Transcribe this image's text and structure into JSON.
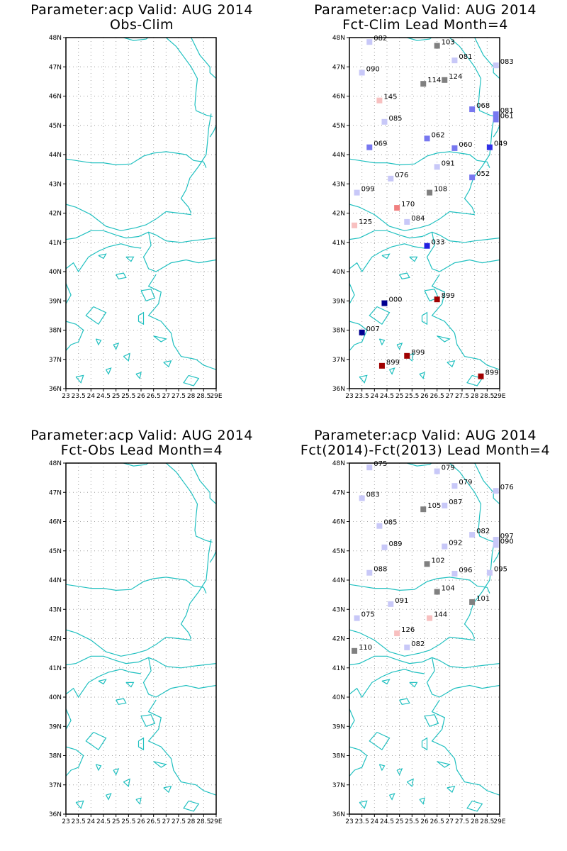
{
  "panels": [
    {
      "title_line1": "Parameter:acp Valid: AUG 2014",
      "title_line2": "Obs-Clim",
      "stations": []
    },
    {
      "title_line1": "Parameter:acp Valid: AUG 2014",
      "title_line2": "Fct-Clim Lead Month=4",
      "stations": [
        {
          "lon": 23.8,
          "lat": 47.85,
          "label": "082",
          "color": "#c8c8f8"
        },
        {
          "lon": 26.5,
          "lat": 47.72,
          "label": "103",
          "color": "#808080"
        },
        {
          "lon": 27.2,
          "lat": 47.22,
          "label": "081",
          "color": "#c8c8f8"
        },
        {
          "lon": 28.85,
          "lat": 47.05,
          "label": "083",
          "color": "#c8c8f8"
        },
        {
          "lon": 23.5,
          "lat": 46.8,
          "label": "090",
          "color": "#c8c8f8"
        },
        {
          "lon": 25.95,
          "lat": 46.42,
          "label": "114",
          "color": "#808080"
        },
        {
          "lon": 26.8,
          "lat": 46.55,
          "label": "124",
          "color": "#808080"
        },
        {
          "lon": 24.2,
          "lat": 45.85,
          "label": "145",
          "color": "#f8c0c0"
        },
        {
          "lon": 27.9,
          "lat": 45.55,
          "label": "068",
          "color": "#7878f0"
        },
        {
          "lon": 28.85,
          "lat": 45.38,
          "label": "081",
          "color": "#7878f0"
        },
        {
          "lon": 28.85,
          "lat": 45.2,
          "label": "061",
          "color": "#7878f0"
        },
        {
          "lon": 24.4,
          "lat": 45.12,
          "label": "085",
          "color": "#c8c8f8"
        },
        {
          "lon": 26.1,
          "lat": 44.55,
          "label": "062",
          "color": "#7878f0"
        },
        {
          "lon": 23.8,
          "lat": 44.25,
          "label": "069",
          "color": "#7878f0"
        },
        {
          "lon": 27.2,
          "lat": 44.22,
          "label": "060",
          "color": "#7878f0"
        },
        {
          "lon": 28.6,
          "lat": 44.25,
          "label": "049",
          "color": "#3030e8"
        },
        {
          "lon": 26.5,
          "lat": 43.58,
          "label": "091",
          "color": "#c8c8f8"
        },
        {
          "lon": 24.65,
          "lat": 43.18,
          "label": "076",
          "color": "#c8c8f8"
        },
        {
          "lon": 27.9,
          "lat": 43.22,
          "label": "052",
          "color": "#7878f0"
        },
        {
          "lon": 23.3,
          "lat": 42.7,
          "label": "099",
          "color": "#c8c8f8"
        },
        {
          "lon": 26.2,
          "lat": 42.7,
          "label": "108",
          "color": "#808080"
        },
        {
          "lon": 24.9,
          "lat": 42.18,
          "label": "170",
          "color": "#f08080"
        },
        {
          "lon": 25.3,
          "lat": 41.7,
          "label": "084",
          "color": "#c8c8f8"
        },
        {
          "lon": 23.2,
          "lat": 41.58,
          "label": "125",
          "color": "#f8c0c0"
        },
        {
          "lon": 26.1,
          "lat": 40.88,
          "label": "033",
          "color": "#2020e0"
        },
        {
          "lon": 24.4,
          "lat": 38.92,
          "label": "000",
          "color": "#000090"
        },
        {
          "lon": 26.5,
          "lat": 39.05,
          "label": "899",
          "color": "#a00000"
        },
        {
          "lon": 23.5,
          "lat": 37.92,
          "label": "007",
          "color": "#000090"
        },
        {
          "lon": 25.3,
          "lat": 37.12,
          "label": "899",
          "color": "#a00000"
        },
        {
          "lon": 24.3,
          "lat": 36.78,
          "label": "899",
          "color": "#a00000"
        },
        {
          "lon": 28.25,
          "lat": 36.42,
          "label": "899",
          "color": "#a00000"
        }
      ]
    },
    {
      "title_line1": "Parameter:acp Valid: AUG 2014",
      "title_line2": "Fct-Obs Lead Month=4",
      "stations": []
    },
    {
      "title_line1": "Parameter:acp Valid: AUG 2014",
      "title_line2": "Fct(2014)-Fct(2013) Lead Month=4",
      "stations": [
        {
          "lon": 23.8,
          "lat": 47.85,
          "label": "075",
          "color": "#c8c8f8"
        },
        {
          "lon": 26.5,
          "lat": 47.72,
          "label": "079",
          "color": "#c8c8f8"
        },
        {
          "lon": 27.2,
          "lat": 47.22,
          "label": "079",
          "color": "#c8c8f8"
        },
        {
          "lon": 28.85,
          "lat": 47.05,
          "label": "076",
          "color": "#c8c8f8"
        },
        {
          "lon": 23.5,
          "lat": 46.8,
          "label": "083",
          "color": "#c8c8f8"
        },
        {
          "lon": 25.95,
          "lat": 46.42,
          "label": "105",
          "color": "#808080"
        },
        {
          "lon": 26.8,
          "lat": 46.55,
          "label": "087",
          "color": "#c8c8f8"
        },
        {
          "lon": 24.2,
          "lat": 45.85,
          "label": "085",
          "color": "#c8c8f8"
        },
        {
          "lon": 27.9,
          "lat": 45.55,
          "label": "082",
          "color": "#c8c8f8"
        },
        {
          "lon": 28.85,
          "lat": 45.38,
          "label": "097",
          "color": "#c8c8f8"
        },
        {
          "lon": 28.85,
          "lat": 45.2,
          "label": "090",
          "color": "#c8c8f8"
        },
        {
          "lon": 24.4,
          "lat": 45.12,
          "label": "089",
          "color": "#c8c8f8"
        },
        {
          "lon": 26.8,
          "lat": 45.15,
          "label": "092",
          "color": "#c8c8f8"
        },
        {
          "lon": 26.1,
          "lat": 44.55,
          "label": "102",
          "color": "#808080"
        },
        {
          "lon": 23.8,
          "lat": 44.25,
          "label": "088",
          "color": "#c8c8f8"
        },
        {
          "lon": 27.2,
          "lat": 44.22,
          "label": "096",
          "color": "#c8c8f8"
        },
        {
          "lon": 28.6,
          "lat": 44.25,
          "label": "095",
          "color": "#c8c8f8"
        },
        {
          "lon": 26.5,
          "lat": 43.6,
          "label": "104",
          "color": "#808080"
        },
        {
          "lon": 24.65,
          "lat": 43.18,
          "label": "091",
          "color": "#c8c8f8"
        },
        {
          "lon": 27.9,
          "lat": 43.25,
          "label": "101",
          "color": "#808080"
        },
        {
          "lon": 23.3,
          "lat": 42.7,
          "label": "075",
          "color": "#c8c8f8"
        },
        {
          "lon": 26.2,
          "lat": 42.7,
          "label": "144",
          "color": "#f8c0c0"
        },
        {
          "lon": 24.9,
          "lat": 42.18,
          "label": "126",
          "color": "#f8c0c0"
        },
        {
          "lon": 25.3,
          "lat": 41.7,
          "label": "082",
          "color": "#c8c8f8"
        },
        {
          "lon": 23.2,
          "lat": 41.58,
          "label": "110",
          "color": "#808080"
        }
      ]
    }
  ],
  "axes": {
    "lat_labels": [
      "36N",
      "37N",
      "38N",
      "39N",
      "40N",
      "41N",
      "42N",
      "43N",
      "44N",
      "45N",
      "46N",
      "47N",
      "48N"
    ],
    "lon_labels": [
      "23",
      "23.5",
      "24",
      "24.5",
      "25",
      "25.5",
      "26",
      "26.5",
      "27",
      "27.5",
      "28",
      "28.5",
      "29E"
    ],
    "lon_range": [
      23,
      29
    ],
    "lat_range": [
      36,
      48
    ]
  },
  "colors": {
    "coastline": "#20c0c0",
    "grid": "#a0a0a0",
    "frame": "#000000"
  }
}
